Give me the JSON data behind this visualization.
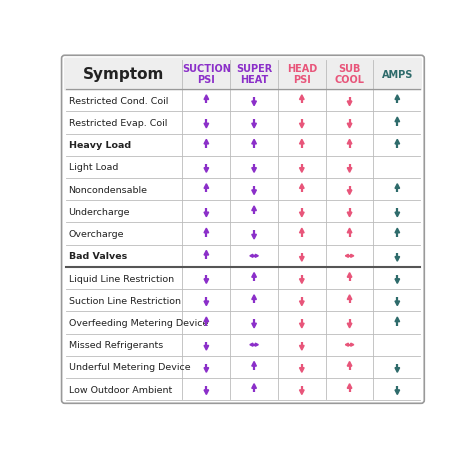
{
  "title": "Symptom",
  "columns": [
    "SUCTION\nPSI",
    "SUPER\nHEAT",
    "HEAD\nPSI",
    "SUB\nCOOL",
    "AMPS"
  ],
  "col_colors": [
    "#8B2FC9",
    "#8B2FC9",
    "#E8557A",
    "#E8557A",
    "#2E6B6B"
  ],
  "rows": [
    "Restricted Cond. Coil",
    "Restricted Evap. Coil",
    "Heavy Load",
    "Light Load",
    "Noncondensable",
    "Undercharge",
    "Overcharge",
    "Bad Valves",
    "Liquid Line Restriction",
    "Suction Line Restriction",
    "Overfeeding Metering Device",
    "Missed Refrigerants",
    "Underful Metering Device",
    "Low Outdoor Ambient"
  ],
  "arrows": [
    [
      "up_p",
      "down_p",
      "up_r",
      "down_r",
      "up_d"
    ],
    [
      "down_p",
      "down_p",
      "down_r",
      "down_r",
      "up_d"
    ],
    [
      "up_p",
      "up_p",
      "up_r",
      "up_r",
      "up_d"
    ],
    [
      "down_p",
      "down_p",
      "down_r",
      "down_r",
      ""
    ],
    [
      "up_p",
      "down_p",
      "up_r",
      "down_r",
      "up_d"
    ],
    [
      "down_p",
      "up_p",
      "down_r",
      "down_r",
      "down_d"
    ],
    [
      "up_p",
      "down_p",
      "up_r",
      "up_r",
      "up_d"
    ],
    [
      "up_p",
      "lr_p",
      "down_r",
      "lr_r",
      "down_d"
    ],
    [
      "down_p",
      "up_p",
      "down_r",
      "up_r",
      "down_d"
    ],
    [
      "down_p",
      "up_p",
      "down_r",
      "up_r",
      "down_d"
    ],
    [
      "up_p",
      "down_p",
      "down_r",
      "down_r",
      "up_d"
    ],
    [
      "down_p",
      "lr_p",
      "down_r",
      "lr_r",
      ""
    ],
    [
      "down_p",
      "up_p",
      "down_r",
      "up_r",
      "down_d"
    ],
    [
      "down_p",
      "up_p",
      "down_r",
      "up_r",
      "down_d"
    ]
  ],
  "purple": "#8B2FC9",
  "pink": "#E8557A",
  "dark_teal": "#2E6B6B",
  "row_bold": [
    false,
    false,
    true,
    false,
    false,
    false,
    false,
    true,
    false,
    false,
    false,
    false,
    false,
    false
  ]
}
